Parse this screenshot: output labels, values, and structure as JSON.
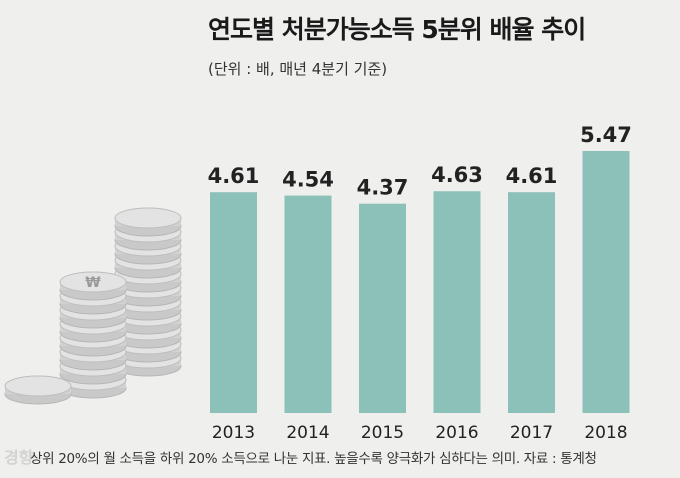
{
  "header": {
    "title": "연도별 처분가능소득 5분위 배율 추이",
    "subtitle": "(단위 : 배, 매년 4분기 기준)"
  },
  "footer": {
    "note": "상위 20%의 월 소득을 하위 20% 소득으로 나눈 지표. 높을수록 양극화가 심하다는 의미. 자료 : 통계청",
    "watermark": "경향"
  },
  "colors": {
    "bar": "#8bc1b8",
    "background": "#efefed",
    "coin": "#d6d6d6"
  },
  "illustration": {
    "coin_symbol": "₩"
  },
  "chart_data": {
    "type": "bar",
    "title": "연도별 처분가능소득 5분위 배율 추이",
    "subtitle": "(단위 : 배, 매년 4분기 기준)",
    "categories": [
      "2013",
      "2014",
      "2015",
      "2016",
      "2017",
      "2018"
    ],
    "values": [
      4.61,
      4.54,
      4.37,
      4.63,
      4.61,
      5.47
    ],
    "value_labels": [
      "4.61",
      "4.54",
      "4.37",
      "4.63",
      "4.61",
      "5.47"
    ],
    "xlabel": "",
    "ylabel": "",
    "grid": false,
    "legend": "none"
  }
}
